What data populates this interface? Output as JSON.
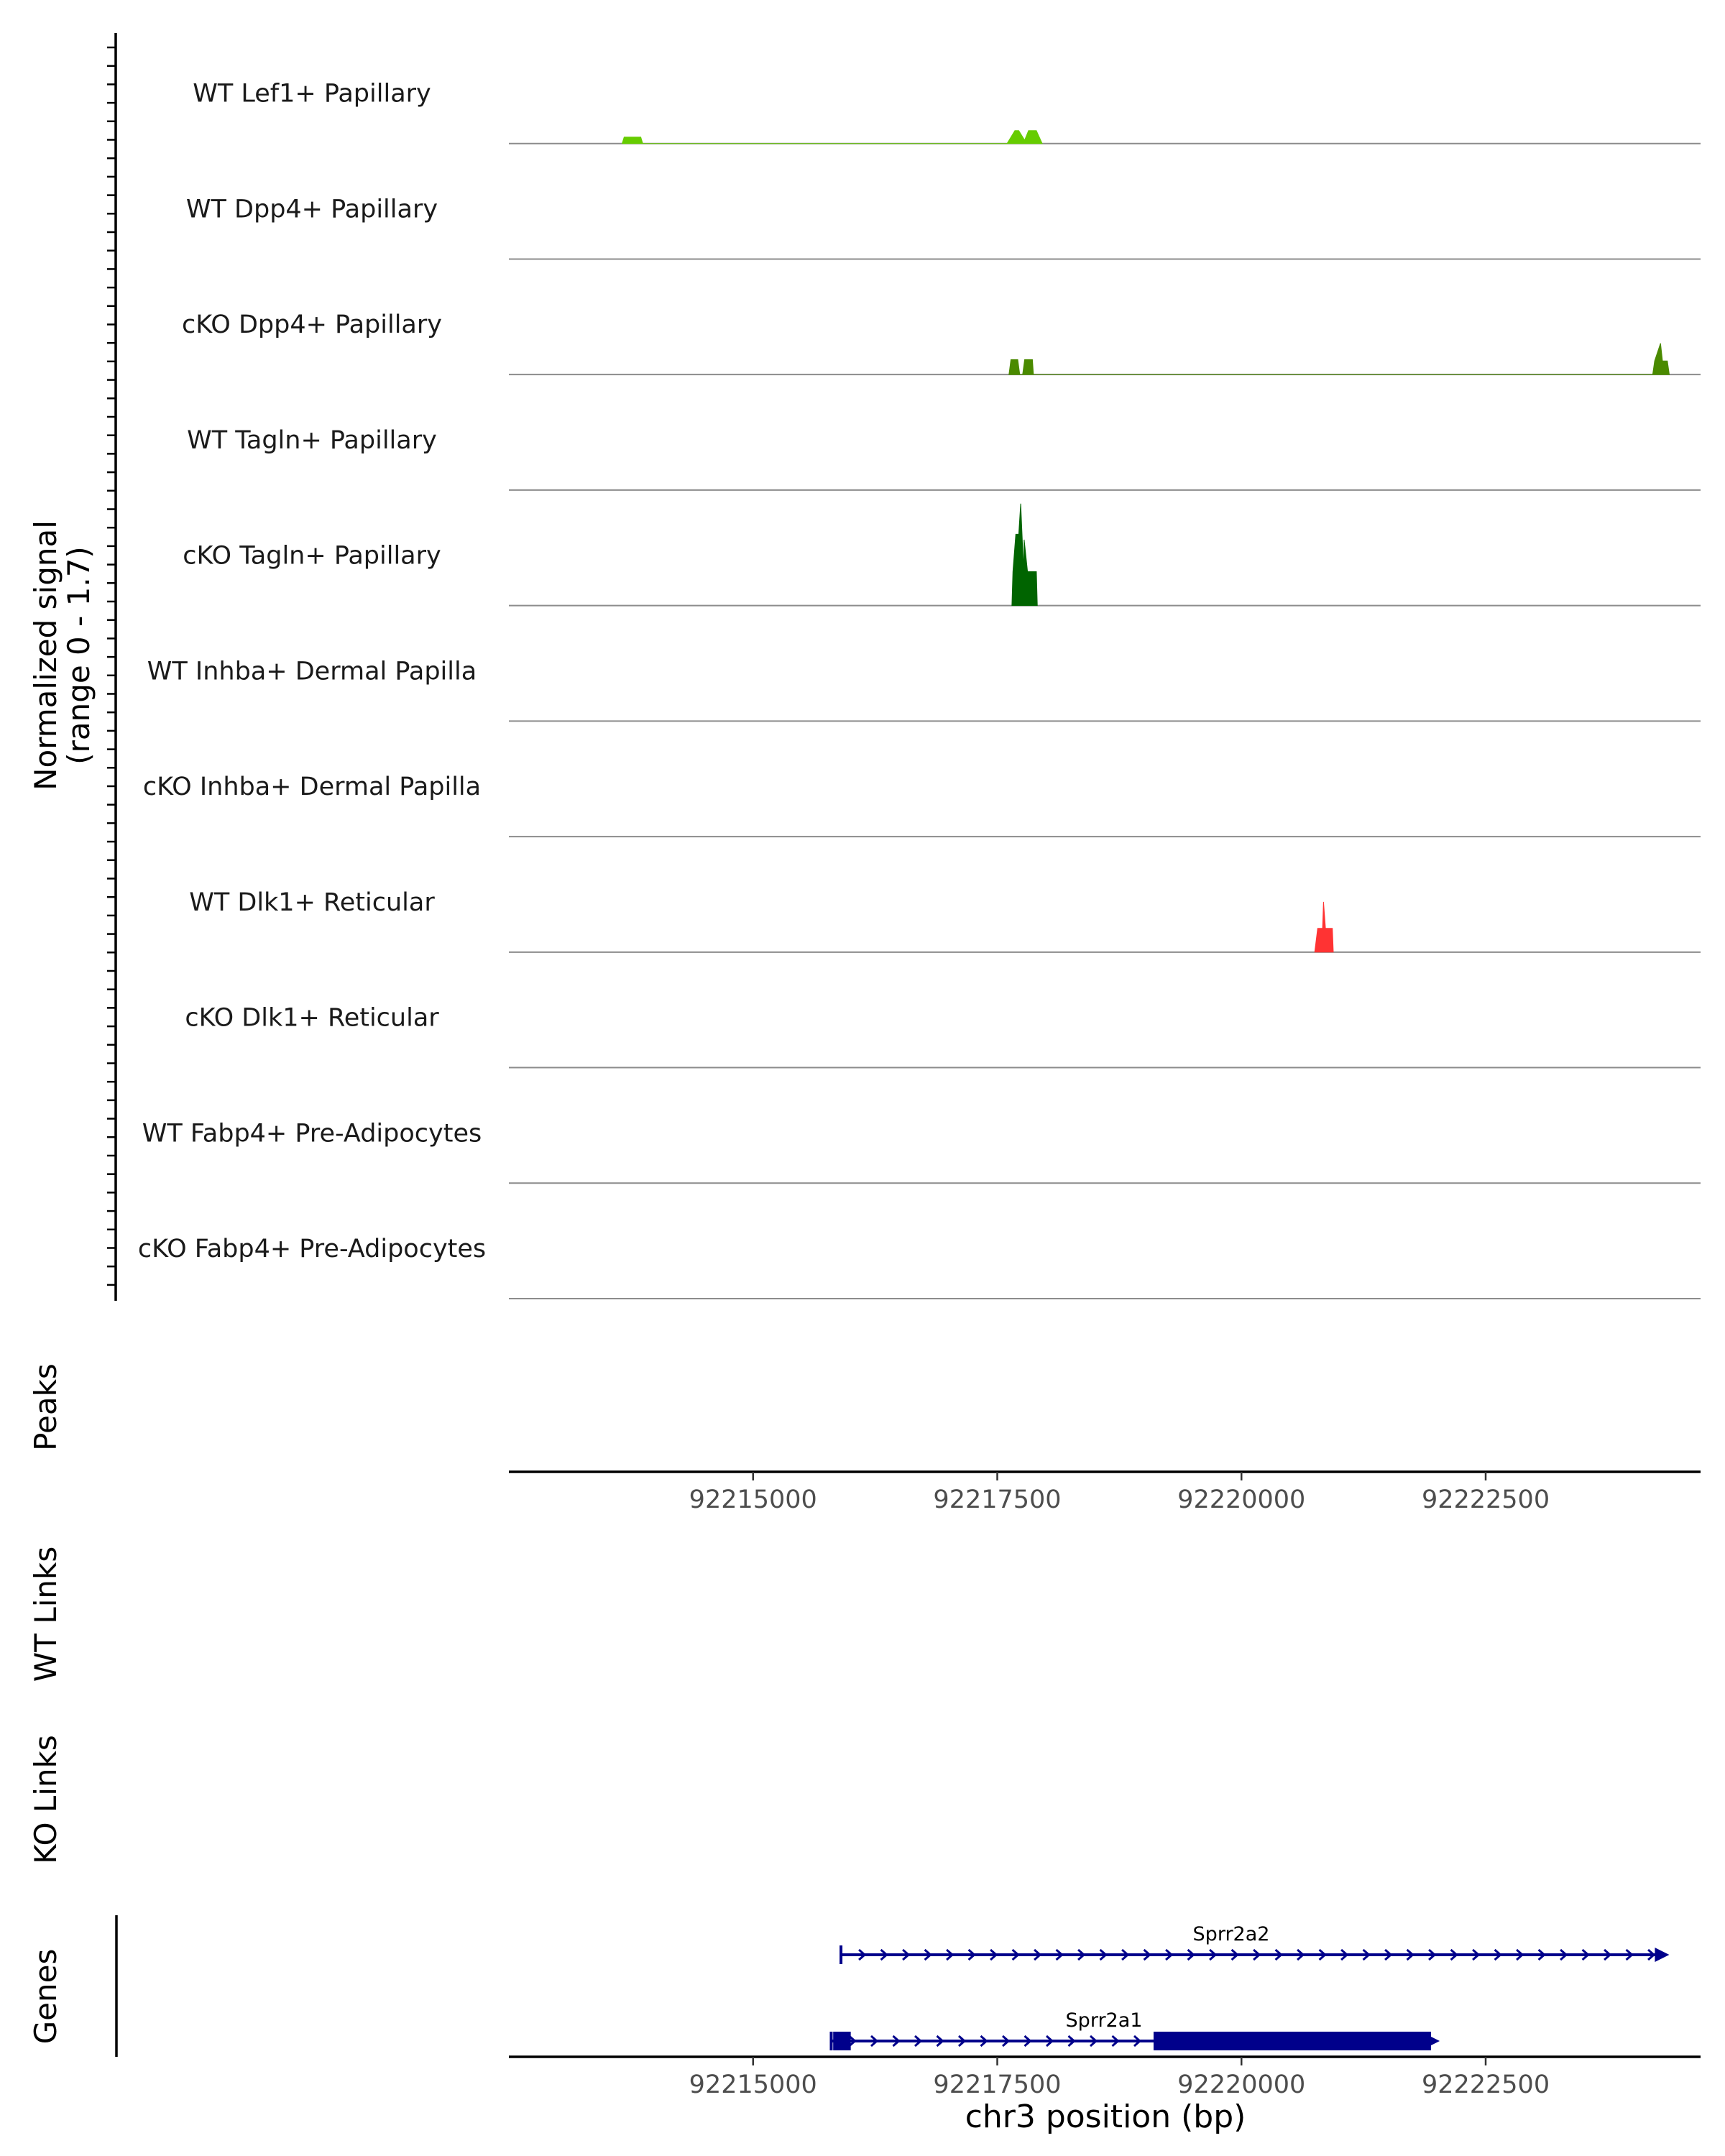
{
  "chart_data": {
    "type": "area",
    "xlabel": "chr3 position (bp)",
    "ylabel_line1": "Normalized signal",
    "ylabel_line2": "(range 0 - 1.7)",
    "xlim": [
      92212500,
      92224700
    ],
    "ylim": [
      0,
      1.7
    ],
    "x_ticks": [
      92215000,
      92217500,
      92220000,
      92222500
    ],
    "x_tick_labels": [
      "92215000",
      "92217500",
      "92220000",
      "92222500"
    ],
    "tracks": [
      {
        "label": "WT Lef1+ Papillary",
        "color": "#66cc00",
        "x": [
          92213660,
          92213680,
          92213850,
          92213870,
          92217600,
          92217680,
          92217720,
          92217780,
          92217820,
          92217900,
          92217960
        ],
        "y": [
          0,
          0.095,
          0.095,
          0,
          0,
          0.19,
          0.19,
          0.05,
          0.19,
          0.19,
          0
        ]
      },
      {
        "label": "WT Dpp4+ Papillary",
        "color": "#4f9900",
        "x": [],
        "y": []
      },
      {
        "label": "cKO Dpp4+ Papillary",
        "color": "#4a8a00",
        "x": [
          92217620,
          92217640,
          92217710,
          92217730,
          92217760,
          92217780,
          92217860,
          92217870,
          92224210,
          92224230,
          92224290,
          92224310,
          92224360,
          92224380
        ],
        "y": [
          0,
          0.22,
          0.22,
          0,
          0,
          0.22,
          0.22,
          0,
          0,
          0.2,
          0.46,
          0.2,
          0.2,
          0
        ]
      },
      {
        "label": "WT Tagln+ Papillary",
        "color": "#2e7d00",
        "x": [],
        "y": []
      },
      {
        "label": "cKO Tagln+ Papillary",
        "color": "#006400",
        "x": [
          92217650,
          92217660,
          92217690,
          92217720,
          92217740,
          92217770,
          92217775,
          92217810,
          92217820,
          92217900,
          92217910
        ],
        "y": [
          0,
          0.5,
          1.05,
          1.05,
          1.5,
          0.5,
          0.97,
          0.5,
          0.5,
          0.5,
          0
        ]
      },
      {
        "label": "WT Inhba+ Dermal Papilla",
        "color": "#ff3333",
        "x": [],
        "y": []
      },
      {
        "label": "cKO Inhba+ Dermal Papilla",
        "color": "#ff3333",
        "x": [],
        "y": []
      },
      {
        "label": "WT Dlk1+ Reticular",
        "color": "#ff3333",
        "x": [
          92220750,
          92220780,
          92220830,
          92220840,
          92220860,
          92220930,
          92220940
        ],
        "y": [
          0,
          0.35,
          0.35,
          0.74,
          0.35,
          0.35,
          0
        ]
      },
      {
        "label": "cKO Dlk1+ Reticular",
        "color": "#ff3333",
        "x": [],
        "y": []
      },
      {
        "label": "WT Fabp4+ Pre-Adipocytes",
        "color": "#ff3333",
        "x": [],
        "y": []
      },
      {
        "label": "cKO Fabp4+ Pre-Adipocytes",
        "color": "#ff3333",
        "x": [],
        "y": []
      }
    ],
    "panels": {
      "peaks": "Peaks",
      "wt_links": "WT Links",
      "ko_links": "KO Links",
      "genes": "Genes"
    },
    "genes": [
      {
        "name": "Sprr2a2",
        "strand": "+",
        "start": 92215900,
        "end": 92224350,
        "cds": [],
        "color": "#00008b"
      },
      {
        "name": "Sprr2a1",
        "strand": "+",
        "start": 92215800,
        "end": 92222000,
        "cds": [
          [
            92215820,
            92216000
          ],
          [
            92219100,
            92221940
          ]
        ],
        "color": "#00008b"
      }
    ]
  }
}
